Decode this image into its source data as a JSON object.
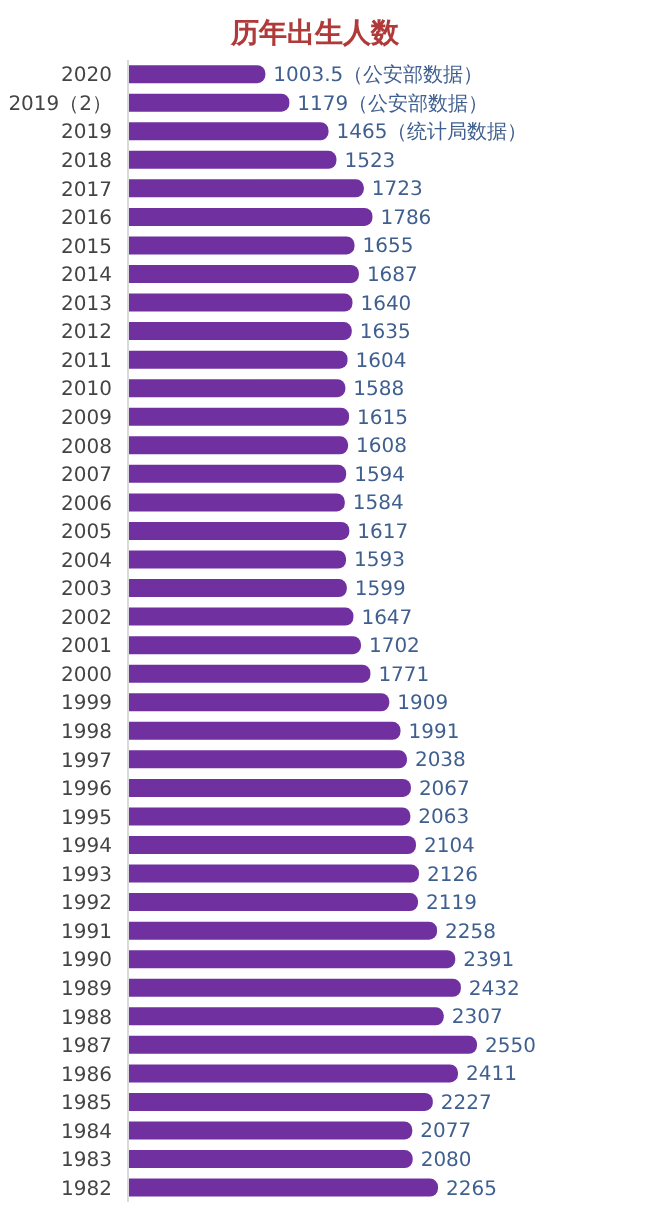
{
  "chart_data": {
    "type": "bar",
    "orientation": "horizontal",
    "title": "历年出生人数",
    "categories": [
      "2020",
      "2019（2）",
      "2019",
      "2018",
      "2017",
      "2016",
      "2015",
      "2014",
      "2013",
      "2012",
      "2011",
      "2010",
      "2009",
      "2008",
      "2007",
      "2006",
      "2005",
      "2004",
      "2003",
      "2002",
      "2001",
      "2000",
      "1999",
      "1998",
      "1997",
      "1996",
      "1995",
      "1994",
      "1993",
      "1992",
      "1991",
      "1990",
      "1989",
      "1988",
      "1987",
      "1986",
      "1985",
      "1984",
      "1983",
      "1982"
    ],
    "values": [
      1003.5,
      1179,
      1465,
      1523,
      1723,
      1786,
      1655,
      1687,
      1640,
      1635,
      1604,
      1588,
      1615,
      1608,
      1594,
      1584,
      1617,
      1593,
      1599,
      1647,
      1702,
      1771,
      1909,
      1991,
      2038,
      2067,
      2063,
      2104,
      2126,
      2119,
      2258,
      2391,
      2432,
      2307,
      2550,
      2411,
      2227,
      2077,
      2080,
      2265
    ],
    "value_labels": [
      "1003.5（公安部数据）",
      "1179（公安部数据）",
      "1465（统计局数据）",
      "1523",
      "1723",
      "1786",
      "1655",
      "1687",
      "1640",
      "1635",
      "1604",
      "1588",
      "1615",
      "1608",
      "1594",
      "1584",
      "1617",
      "1593",
      "1599",
      "1647",
      "1702",
      "1771",
      "1909",
      "1991",
      "2038",
      "2067",
      "2063",
      "2104",
      "2126",
      "2119",
      "2258",
      "2391",
      "2432",
      "2307",
      "2550",
      "2411",
      "2227",
      "2077",
      "2080",
      "2265"
    ],
    "color": "#7030a0",
    "grid": false,
    "legend": false
  }
}
